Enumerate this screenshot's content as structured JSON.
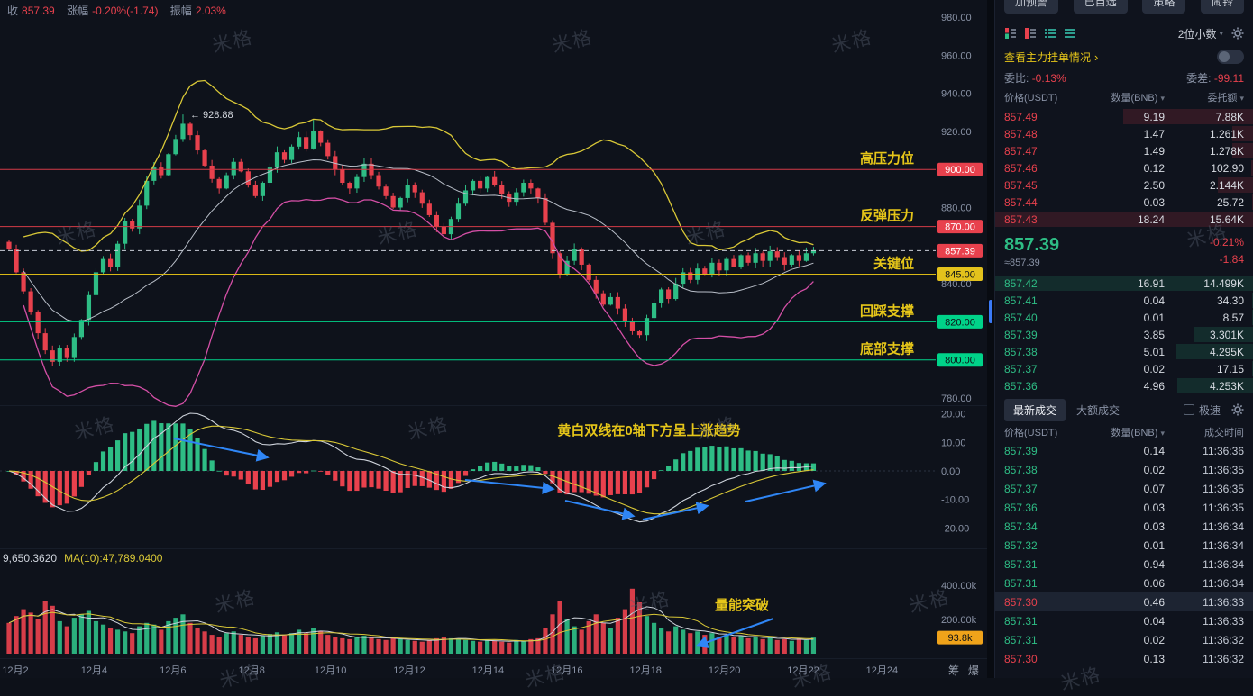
{
  "watermark": {
    "text": "米格"
  },
  "chart": {
    "header": {
      "close_label": "收",
      "close_value": "857.39",
      "change_label": "涨幅",
      "change_value": "-0.20%(-1.74)",
      "amplitude_label": "振幅",
      "amplitude_value": "2.03%"
    },
    "peak_label": "← 928.88",
    "price_ticks": [
      "980.00",
      "960.00",
      "940.00",
      "920.00",
      "880.00",
      "840.00",
      "780.00"
    ],
    "price_tick_values": [
      980,
      960,
      940,
      920,
      880,
      840,
      780
    ],
    "levels": [
      {
        "name": "高压力位",
        "price": 900,
        "badge": "900.00",
        "kind": "resistance"
      },
      {
        "name": "反弹压力",
        "price": 870,
        "badge": "870.00",
        "kind": "resistance"
      },
      {
        "name": "关键位",
        "price": 845,
        "badge": "845.00",
        "kind": "key"
      },
      {
        "name": "回踩支撑",
        "price": 820,
        "badge": "820.00",
        "kind": "support"
      },
      {
        "name": "底部支撑",
        "price": 800,
        "badge": "800.00",
        "kind": "support"
      }
    ],
    "current_price": {
      "value": 857.39,
      "badge": "857.39"
    },
    "macd": {
      "ticks": [
        "20.00",
        "10.00",
        "0.00",
        "-10.00",
        "-20.00"
      ],
      "tick_values": [
        20,
        10,
        0,
        -10,
        -20
      ],
      "note": "黄白双线在0轴下方呈上涨趋势"
    },
    "volume": {
      "ticks": [
        "400.00k",
        "200.00k"
      ],
      "tick_values": [
        400,
        200
      ],
      "badge": "93.8k",
      "label_left": "9,650.3620",
      "label_ma": "MA(10):47,789.0400",
      "note": "量能突破"
    },
    "x_ticks": [
      "12月2",
      "12月4",
      "12月6",
      "12月8",
      "12月10",
      "12月12",
      "12月14",
      "12月16",
      "12月18",
      "12月20",
      "12月22",
      "12月24"
    ],
    "corner_buttons": [
      "筹",
      "爆"
    ]
  },
  "chart_data": {
    "type": "candlestick",
    "symbol_last": 857.39,
    "ylim": [
      780,
      980
    ],
    "first_open": 862,
    "peak_index": 24,
    "peak_high": 928.88,
    "second_peak_index": 42,
    "second_peak_high": 926,
    "low_index": 87,
    "low_value": 811.6,
    "closes": [
      858,
      846,
      836,
      825,
      814,
      805,
      799,
      806,
      801,
      812,
      821,
      834,
      846,
      853,
      849,
      861,
      873,
      869,
      881,
      894,
      901,
      897,
      908,
      916,
      924,
      918,
      910,
      902,
      895,
      890,
      897,
      904,
      899,
      892,
      886,
      893,
      901,
      909,
      905,
      912,
      917,
      911,
      920,
      914,
      907,
      900,
      893,
      890,
      896,
      903,
      897,
      891,
      886,
      880,
      885,
      892,
      888,
      882,
      876,
      870,
      866,
      874,
      882,
      889,
      894,
      890,
      896,
      892,
      887,
      883,
      888,
      893,
      890,
      885,
      872,
      856,
      845,
      852,
      858,
      850,
      842,
      835,
      829,
      833,
      827,
      820,
      815,
      813,
      822,
      830,
      837,
      832,
      840,
      846,
      842,
      848,
      845,
      851,
      847,
      853,
      849,
      855,
      851,
      856,
      852,
      857,
      854,
      850,
      855,
      852,
      856,
      857.39
    ],
    "volumes_k": [
      180,
      220,
      260,
      240,
      200,
      310,
      280,
      190,
      160,
      210,
      230,
      250,
      190,
      170,
      150,
      140,
      130,
      120,
      160,
      180,
      170,
      140,
      190,
      210,
      230,
      180,
      150,
      130,
      110,
      100,
      120,
      130,
      110,
      95,
      90,
      105,
      115,
      125,
      110,
      120,
      140,
      120,
      150,
      130,
      110,
      100,
      90,
      85,
      95,
      105,
      95,
      85,
      80,
      90,
      85,
      80,
      75,
      70,
      80,
      90,
      100,
      90,
      85,
      80,
      75,
      70,
      80,
      75,
      70,
      65,
      80,
      75,
      85,
      90,
      150,
      230,
      310,
      200,
      160,
      140,
      190,
      230,
      180,
      150,
      210,
      260,
      380,
      300,
      220,
      180,
      150,
      130,
      160,
      140,
      120,
      130,
      110,
      120,
      100,
      110,
      95,
      105,
      90,
      100,
      85,
      95,
      80,
      85,
      75,
      90,
      80,
      93.8
    ]
  },
  "panel": {
    "top_buttons": [
      "加预警",
      "已自选",
      "策略",
      "闹铃"
    ],
    "decimals_selector": "2位小数",
    "main_orders_link": "查看主力挂单情况",
    "weibi_label": "委比:",
    "weibi_value": "-0.13%",
    "weicha_label": "委差:",
    "weicha_value": "-99.11",
    "book_headers": [
      "价格(USDT)",
      "数量(BNB)",
      "委托额"
    ],
    "asks": [
      {
        "price": "857.49",
        "qty": "9.19",
        "amount": "7.88K"
      },
      {
        "price": "857.48",
        "qty": "1.47",
        "amount": "1.261K"
      },
      {
        "price": "857.47",
        "qty": "1.49",
        "amount": "1.278K"
      },
      {
        "price": "857.46",
        "qty": "0.12",
        "amount": "102.90"
      },
      {
        "price": "857.45",
        "qty": "2.50",
        "amount": "2.144K"
      },
      {
        "price": "857.44",
        "qty": "0.03",
        "amount": "25.72"
      },
      {
        "price": "857.43",
        "qty": "18.24",
        "amount": "15.64K"
      }
    ],
    "last_price": {
      "value": "857.39",
      "change": "-0.21%",
      "approx": "≈857.39",
      "diff": "-1.84"
    },
    "bids": [
      {
        "price": "857.42",
        "qty": "16.91",
        "amount": "14.499K"
      },
      {
        "price": "857.41",
        "qty": "0.04",
        "amount": "34.30"
      },
      {
        "price": "857.40",
        "qty": "0.01",
        "amount": "8.57"
      },
      {
        "price": "857.39",
        "qty": "3.85",
        "amount": "3.301K"
      },
      {
        "price": "857.38",
        "qty": "5.01",
        "amount": "4.295K"
      },
      {
        "price": "857.37",
        "qty": "0.02",
        "amount": "17.15"
      },
      {
        "price": "857.36",
        "qty": "4.96",
        "amount": "4.253K"
      }
    ],
    "trade_tabs": [
      "最新成交",
      "大额成交"
    ],
    "express_label": "极速",
    "trade_headers": [
      "价格(USDT)",
      "数量(BNB)",
      "成交时间"
    ],
    "trades": [
      {
        "price": "857.39",
        "qty": "0.14",
        "time": "11:36:36",
        "side": "up"
      },
      {
        "price": "857.38",
        "qty": "0.02",
        "time": "11:36:35",
        "side": "up"
      },
      {
        "price": "857.37",
        "qty": "0.07",
        "time": "11:36:35",
        "side": "up"
      },
      {
        "price": "857.36",
        "qty": "0.03",
        "time": "11:36:35",
        "side": "up"
      },
      {
        "price": "857.34",
        "qty": "0.03",
        "time": "11:36:34",
        "side": "up"
      },
      {
        "price": "857.32",
        "qty": "0.01",
        "time": "11:36:34",
        "side": "up"
      },
      {
        "price": "857.31",
        "qty": "0.94",
        "time": "11:36:34",
        "side": "up"
      },
      {
        "price": "857.31",
        "qty": "0.06",
        "time": "11:36:34",
        "side": "up"
      },
      {
        "price": "857.30",
        "qty": "0.46",
        "time": "11:36:33",
        "side": "down",
        "highlight": true
      },
      {
        "price": "857.31",
        "qty": "0.04",
        "time": "11:36:33",
        "side": "up"
      },
      {
        "price": "857.31",
        "qty": "0.02",
        "time": "11:36:32",
        "side": "up"
      },
      {
        "price": "857.30",
        "qty": "0.13",
        "time": "11:36:32",
        "side": "down"
      }
    ],
    "colors": {
      "up": "#2ebd85",
      "down": "#e8414d",
      "accent_yellow": "#e6c619",
      "badge_green": "#00d389",
      "badge_yellow": "#e3c21c",
      "badge_orange": "#f0a31a",
      "blue": "#2f86f6"
    }
  }
}
